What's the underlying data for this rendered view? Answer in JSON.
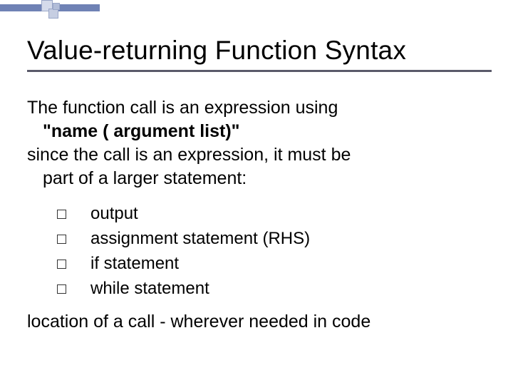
{
  "slide": {
    "title": "Value-returning Function Syntax",
    "para_line1": "The function call is an expression using",
    "para_line2": "\"name  ( argument list)\"",
    "para_line3": "since the call is an expression, it must be",
    "para_line4": "part of a larger statement:",
    "bullets": {
      "b1": "output",
      "b2": "assignment statement (RHS)",
      "b3": "if statement",
      "b4": "while statement"
    },
    "closing": "location of a call - wherever needed in code"
  },
  "style": {
    "title_fontsize": 37,
    "body_fontsize": 25,
    "bullet_fontsize": 24,
    "text_color": "#000000",
    "background_color": "#ffffff",
    "accent_color": "#6f82b5",
    "rule_color": "#5a5a6a"
  }
}
